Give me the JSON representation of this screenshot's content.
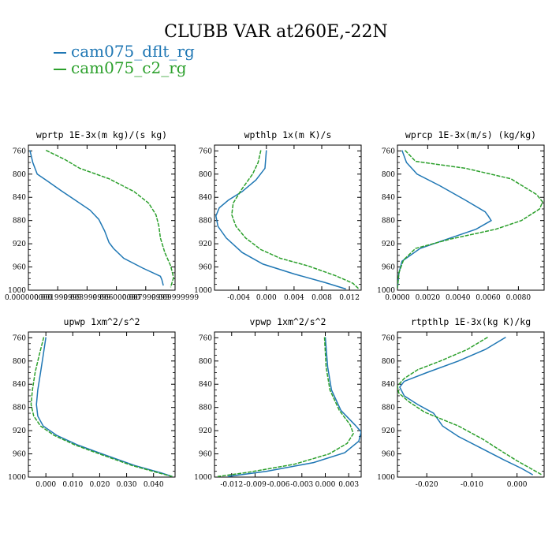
{
  "figure": {
    "title": "CLUBB VAR at260E,-22N",
    "legend": [
      {
        "label": "cam075_dflt_rg",
        "color": "#1f77b4"
      },
      {
        "label": "cam075_c2_rg",
        "color": "#2ca02c"
      }
    ]
  },
  "chart_data": [
    {
      "type": "line",
      "title": "wprtp  1E-3x(m kg)/(s kg)",
      "xlim": [
        0.0,
        0.01
      ],
      "ylim": [
        1000,
        750
      ],
      "xticks": [
        0.0,
        0.002,
        0.004,
        0.006,
        0.008,
        0.01
      ],
      "xtick_labels": [
        "0.000000000",
        "0.001999999",
        "0.003999999",
        "0.006000000",
        "0.007999999",
        "0.009999999"
      ],
      "yticks": [
        760,
        800,
        840,
        880,
        920,
        960,
        1000
      ],
      "series": [
        {
          "name": "cam075_dflt_rg",
          "color": "#1f77b4",
          "points": [
            [
              0.0001,
              759
            ],
            [
              0.0003,
              780
            ],
            [
              0.0006,
              800
            ],
            [
              0.0013,
              812
            ],
            [
              0.0022,
              828
            ],
            [
              0.0032,
              845
            ],
            [
              0.0042,
              862
            ],
            [
              0.0048,
              878
            ],
            [
              0.0052,
              898
            ],
            [
              0.0055,
              918
            ],
            [
              0.0058,
              928
            ],
            [
              0.0065,
              945
            ],
            [
              0.0078,
              962
            ],
            [
              0.009,
              976
            ],
            [
              0.0091,
              982
            ],
            [
              0.0092,
              992
            ]
          ]
        },
        {
          "name": "cam075_c2_rg",
          "color": "#2ca02c",
          "points": [
            [
              0.0012,
              759
            ],
            [
              0.0025,
              775
            ],
            [
              0.0035,
              790
            ],
            [
              0.0055,
              808
            ],
            [
              0.0072,
              830
            ],
            [
              0.0082,
              850
            ],
            [
              0.0087,
              870
            ],
            [
              0.0089,
              890
            ],
            [
              0.009,
              910
            ],
            [
              0.0093,
              935
            ],
            [
              0.0097,
              958
            ],
            [
              0.0099,
              978
            ],
            [
              0.0097,
              995
            ]
          ]
        }
      ]
    },
    {
      "type": "line",
      "title": "wpthlp  1x(m K)/s",
      "xlim": [
        -0.0075,
        0.0137
      ],
      "ylim": [
        1000,
        750
      ],
      "xticks": [
        -0.004,
        0.0,
        0.004,
        0.008,
        0.012
      ],
      "xtick_labels": [
        "-0.004",
        "0.000",
        "0.004",
        "0.008",
        "0.012"
      ],
      "yticks": [
        760,
        800,
        840,
        880,
        920,
        960,
        1000
      ],
      "series": [
        {
          "name": "cam075_dflt_rg",
          "color": "#1f77b4",
          "points": [
            [
              0.0,
              759
            ],
            [
              -0.0002,
              790
            ],
            [
              -0.0015,
              810
            ],
            [
              -0.0035,
              830
            ],
            [
              -0.0055,
              845
            ],
            [
              -0.0068,
              858
            ],
            [
              -0.0073,
              872
            ],
            [
              -0.007,
              890
            ],
            [
              -0.0058,
              910
            ],
            [
              -0.0035,
              935
            ],
            [
              -0.0005,
              955
            ],
            [
              0.004,
              972
            ],
            [
              0.0085,
              987
            ],
            [
              0.0115,
              998
            ]
          ]
        },
        {
          "name": "cam075_c2_rg",
          "color": "#2ca02c",
          "points": [
            [
              -0.0008,
              759
            ],
            [
              -0.0012,
              780
            ],
            [
              -0.002,
              800
            ],
            [
              -0.0035,
              825
            ],
            [
              -0.0048,
              850
            ],
            [
              -0.005,
              870
            ],
            [
              -0.0044,
              890
            ],
            [
              -0.003,
              910
            ],
            [
              -0.0008,
              930
            ],
            [
              0.002,
              945
            ],
            [
              0.006,
              958
            ],
            [
              0.01,
              975
            ],
            [
              0.0125,
              988
            ],
            [
              0.0133,
              997
            ]
          ]
        }
      ]
    },
    {
      "type": "line",
      "title": "wprcp  1E-3x(m/s) (kg/kg)",
      "xlim": [
        0.0,
        0.0097
      ],
      "ylim": [
        1000,
        750
      ],
      "xticks": [
        0.0,
        0.002,
        0.004,
        0.006,
        0.008
      ],
      "xtick_labels": [
        "0.0000",
        "0.0020",
        "0.0040",
        "0.0060",
        "0.0080"
      ],
      "yticks": [
        760,
        800,
        840,
        880,
        920,
        960,
        1000
      ],
      "series": [
        {
          "name": "cam075_dflt_rg",
          "color": "#1f77b4",
          "points": [
            [
              0.0003,
              759
            ],
            [
              0.0006,
              780
            ],
            [
              0.0013,
              800
            ],
            [
              0.0028,
              820
            ],
            [
              0.0045,
              845
            ],
            [
              0.0058,
              865
            ],
            [
              0.006,
              872
            ],
            [
              0.0062,
              880
            ],
            [
              0.0052,
              895
            ],
            [
              0.0035,
              910
            ],
            [
              0.0015,
              928
            ],
            [
              0.0003,
              950
            ],
            [
              0.0001,
              970
            ],
            [
              0.0,
              997
            ]
          ]
        },
        {
          "name": "cam075_c2_rg",
          "color": "#2ca02c",
          "points": [
            [
              0.0005,
              759
            ],
            [
              0.0012,
              778
            ],
            [
              0.0045,
              790
            ],
            [
              0.0075,
              808
            ],
            [
              0.0092,
              835
            ],
            [
              0.0096,
              848
            ],
            [
              0.0094,
              860
            ],
            [
              0.0082,
              880
            ],
            [
              0.0065,
              895
            ],
            [
              0.0035,
              912
            ],
            [
              0.0012,
              928
            ],
            [
              0.0004,
              948
            ],
            [
              0.0001,
              970
            ],
            [
              0.0,
              997
            ]
          ]
        }
      ]
    },
    {
      "type": "line",
      "title": "upwp  1xm^2/s^2",
      "xlim": [
        -0.0065,
        0.048
      ],
      "ylim": [
        1000,
        750
      ],
      "xticks": [
        0.0,
        0.01,
        0.02,
        0.03,
        0.04
      ],
      "xtick_labels": [
        "0.000",
        "0.010",
        "0.020",
        "0.030",
        "0.040"
      ],
      "yticks": [
        760,
        800,
        840,
        880,
        920,
        960,
        1000
      ],
      "series": [
        {
          "name": "cam075_dflt_rg",
          "color": "#1f77b4",
          "points": [
            [
              0.0,
              759
            ],
            [
              -0.001,
              790
            ],
            [
              -0.002,
              820
            ],
            [
              -0.003,
              850
            ],
            [
              -0.0035,
              875
            ],
            [
              -0.003,
              895
            ],
            [
              -0.001,
              912
            ],
            [
              0.004,
              928
            ],
            [
              0.012,
              945
            ],
            [
              0.022,
              962
            ],
            [
              0.033,
              980
            ],
            [
              0.043,
              993
            ],
            [
              0.047,
              999
            ]
          ]
        },
        {
          "name": "cam075_c2_rg",
          "color": "#2ca02c",
          "points": [
            [
              -0.0008,
              759
            ],
            [
              -0.0025,
              790
            ],
            [
              -0.004,
              820
            ],
            [
              -0.005,
              850
            ],
            [
              -0.0055,
              875
            ],
            [
              -0.0045,
              895
            ],
            [
              -0.002,
              912
            ],
            [
              0.003,
              928
            ],
            [
              0.011,
              945
            ],
            [
              0.021,
              962
            ],
            [
              0.032,
              980
            ],
            [
              0.042,
              993
            ],
            [
              0.047,
              999
            ]
          ]
        }
      ]
    },
    {
      "type": "line",
      "title": "vpwp  1xm^2/s^2",
      "xlim": [
        -0.0142,
        0.0046
      ],
      "ylim": [
        1000,
        750
      ],
      "xticks": [
        -0.012,
        -0.009,
        -0.006,
        -0.003,
        0.0,
        0.003
      ],
      "xtick_labels": [
        "-0.012",
        "-0.009",
        "-0.006",
        "-0.003",
        "0.000",
        "0.003"
      ],
      "yticks": [
        760,
        800,
        840,
        880,
        920,
        960,
        1000
      ],
      "series": [
        {
          "name": "cam075_dflt_rg",
          "color": "#1f77b4",
          "points": [
            [
              0.0,
              759
            ],
            [
              0.0003,
              810
            ],
            [
              0.0008,
              850
            ],
            [
              0.002,
              885
            ],
            [
              0.0038,
              910
            ],
            [
              0.0046,
              922
            ],
            [
              0.0043,
              938
            ],
            [
              0.0025,
              958
            ],
            [
              -0.0015,
              975
            ],
            [
              -0.0075,
              990
            ],
            [
              -0.0125,
              999
            ]
          ]
        },
        {
          "name": "cam075_c2_rg",
          "color": "#2ca02c",
          "points": [
            [
              -0.0001,
              759
            ],
            [
              0.0001,
              810
            ],
            [
              0.0006,
              850
            ],
            [
              0.0018,
              885
            ],
            [
              0.0032,
              910
            ],
            [
              0.0036,
              925
            ],
            [
              0.0028,
              942
            ],
            [
              0.0005,
              960
            ],
            [
              -0.004,
              978
            ],
            [
              -0.01,
              992
            ],
            [
              -0.0138,
              999
            ]
          ]
        }
      ]
    },
    {
      "type": "line",
      "title": "rtpthlp  1E-3x(kg K)/kg",
      "xlim": [
        -0.0265,
        0.006
      ],
      "ylim": [
        1000,
        750
      ],
      "xticks": [
        -0.02,
        -0.01,
        0.0
      ],
      "xtick_labels": [
        "-0.020",
        "-0.010",
        "0.000"
      ],
      "yticks": [
        760,
        800,
        840,
        880,
        920,
        960,
        1000
      ],
      "series": [
        {
          "name": "cam075_dflt_rg",
          "color": "#1f77b4",
          "points": [
            [
              -0.0025,
              759
            ],
            [
              -0.007,
              780
            ],
            [
              -0.013,
              800
            ],
            [
              -0.02,
              820
            ],
            [
              -0.025,
              835
            ],
            [
              -0.026,
              845
            ],
            [
              -0.025,
              860
            ],
            [
              -0.022,
              875
            ],
            [
              -0.0185,
              890
            ],
            [
              -0.0165,
              912
            ],
            [
              -0.013,
              930
            ],
            [
              -0.008,
              950
            ],
            [
              -0.003,
              970
            ],
            [
              0.001,
              985
            ],
            [
              0.0035,
              996
            ]
          ]
        },
        {
          "name": "cam075_c2_rg",
          "color": "#2ca02c",
          "points": [
            [
              -0.0065,
              759
            ],
            [
              -0.011,
              780
            ],
            [
              -0.017,
              800
            ],
            [
              -0.022,
              815
            ],
            [
              -0.025,
              830
            ],
            [
              -0.0265,
              843
            ],
            [
              -0.0262,
              855
            ],
            [
              -0.024,
              870
            ],
            [
              -0.0205,
              888
            ],
            [
              -0.013,
              912
            ],
            [
              -0.0075,
              935
            ],
            [
              -0.0035,
              955
            ],
            [
              0.0,
              972
            ],
            [
              0.003,
              985
            ],
            [
              0.0055,
              996
            ]
          ]
        }
      ]
    }
  ]
}
